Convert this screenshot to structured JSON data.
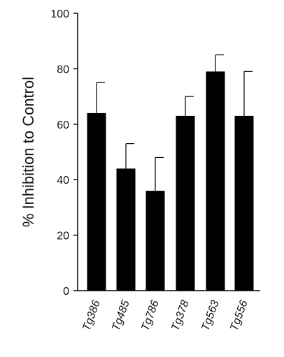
{
  "chart_data": {
    "type": "bar",
    "categories": [
      "Tg386",
      "Tg485",
      "Tg786",
      "Tg378",
      "Tg563",
      "Tg556"
    ],
    "values": [
      64,
      44,
      36,
      63,
      79,
      63
    ],
    "error_upper": [
      75,
      53,
      48,
      70,
      85,
      79
    ],
    "ylabel": "% Inhibition to Control",
    "xlabel": "",
    "ylim": [
      0,
      100
    ],
    "yticks": [
      0,
      20,
      40,
      60,
      80,
      100
    ],
    "grid": false,
    "bar_color": "#000000",
    "axis_color": "#000000"
  }
}
